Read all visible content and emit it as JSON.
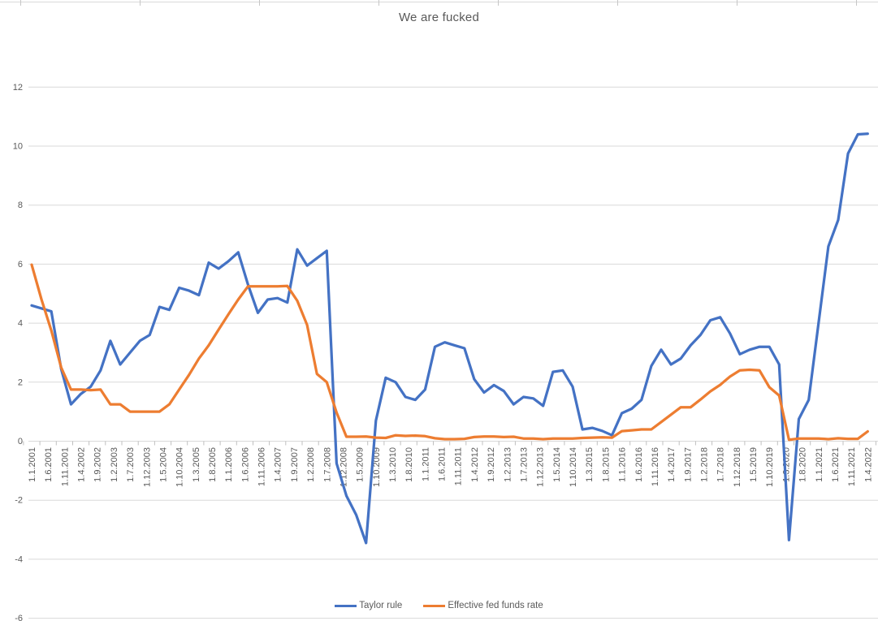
{
  "sheet": {
    "top_border_color": "#d9d9d9",
    "column_tick_positions": [
      25,
      172,
      319,
      466,
      613,
      760,
      907,
      1054
    ]
  },
  "chart": {
    "title": "We are fucked",
    "title_color": "#595959",
    "gridline_color": "#d9d9d9",
    "tick_color": "#bfbfbf",
    "label_color": "#595959",
    "legend": [
      {
        "label": "Taylor rule",
        "color": "#4472C4"
      },
      {
        "label": "Effective fed funds rate",
        "color": "#ED7D31"
      }
    ]
  },
  "chart_data": {
    "type": "line",
    "title": "We are fucked",
    "xlabel": "",
    "ylabel": "",
    "ylim": [
      -6,
      12
    ],
    "y_ticks": [
      12,
      10,
      8,
      6,
      4,
      2,
      0,
      -2,
      -4,
      -6
    ],
    "grid": true,
    "legend_position": "bottom",
    "x_tick_labels": [
      "1.1.2001",
      "1.6.2001",
      "1.11.2001",
      "1.4.2002",
      "1.9.2002",
      "1.2.2003",
      "1.7.2003",
      "1.12.2003",
      "1.5.2004",
      "1.10.2004",
      "1.3.2005",
      "1.8.2005",
      "1.1.2006",
      "1.6.2006",
      "1.11.2006",
      "1.4.2007",
      "1.9.2007",
      "1.2.2008",
      "1.7.2008",
      "1.12.2008",
      "1.5.2009",
      "1.10.2009",
      "1.3.2010",
      "1.8.2010",
      "1.1.2011",
      "1.6.2011",
      "1.11.2011",
      "1.4.2012",
      "1.9.2012",
      "1.2.2013",
      "1.7.2013",
      "1.12.2013",
      "1.5.2014",
      "1.10.2014",
      "1.3.2015",
      "1.8.2015",
      "1.1.2016",
      "1.6.2016",
      "1.11.2016",
      "1.4.2017",
      "1.9.2017",
      "1.2.2018",
      "1.7.2018",
      "1.12.2018",
      "1.5.2019",
      "1.10.2019",
      "1.3.2020",
      "1.8.2020",
      "1.1.2021",
      "1.6.2021",
      "1.11.2021",
      "1.4.2022"
    ],
    "x_tick_label_month_step": 5,
    "x_axis_note": "monthly axis from Jan 2001 to Apr 2022; series sampled quarterly (every 3 months)",
    "series_x_step_months": 3,
    "series": [
      {
        "name": "Taylor rule",
        "color": "#4472C4",
        "values": [
          4.6,
          4.5,
          4.4,
          2.45,
          1.25,
          1.6,
          1.85,
          2.4,
          3.4,
          2.6,
          3.0,
          3.4,
          3.6,
          4.55,
          4.45,
          5.2,
          5.1,
          4.95,
          6.05,
          5.85,
          6.1,
          6.4,
          5.3,
          4.35,
          4.8,
          4.85,
          4.7,
          6.5,
          5.95,
          6.2,
          6.45,
          -0.75,
          -1.85,
          -2.5,
          -3.45,
          0.7,
          2.15,
          2.0,
          1.5,
          1.4,
          1.75,
          3.2,
          3.35,
          3.25,
          3.15,
          2.1,
          1.65,
          1.9,
          1.7,
          1.25,
          1.5,
          1.45,
          1.2,
          2.35,
          2.4,
          1.85,
          0.4,
          0.45,
          0.35,
          0.2,
          0.95,
          1.1,
          1.4,
          2.55,
          3.1,
          2.6,
          2.8,
          3.25,
          3.6,
          4.1,
          4.2,
          3.65,
          2.95,
          3.1,
          3.2,
          3.2,
          2.6,
          -3.35,
          0.75,
          1.4,
          4.0,
          6.6,
          7.5,
          9.75,
          10.4,
          10.42
        ]
      },
      {
        "name": "Effective fed funds rate",
        "color": "#ED7D31",
        "values": [
          5.98,
          4.8,
          3.75,
          2.5,
          1.75,
          1.75,
          1.73,
          1.75,
          1.25,
          1.25,
          1.0,
          1.0,
          1.0,
          1.0,
          1.25,
          1.75,
          2.25,
          2.8,
          3.25,
          3.78,
          4.3,
          4.8,
          5.25,
          5.25,
          5.25,
          5.25,
          5.26,
          4.76,
          3.94,
          2.28,
          2.0,
          0.97,
          0.15,
          0.15,
          0.16,
          0.12,
          0.11,
          0.2,
          0.18,
          0.19,
          0.17,
          0.1,
          0.07,
          0.07,
          0.08,
          0.14,
          0.16,
          0.16,
          0.14,
          0.15,
          0.09,
          0.09,
          0.07,
          0.09,
          0.09,
          0.09,
          0.11,
          0.12,
          0.13,
          0.12,
          0.34,
          0.37,
          0.4,
          0.4,
          0.65,
          0.9,
          1.15,
          1.15,
          1.41,
          1.69,
          1.91,
          2.19,
          2.4,
          2.42,
          2.4,
          1.83,
          1.55,
          0.05,
          0.09,
          0.09,
          0.09,
          0.07,
          0.1,
          0.08,
          0.08,
          0.33
        ]
      }
    ]
  }
}
